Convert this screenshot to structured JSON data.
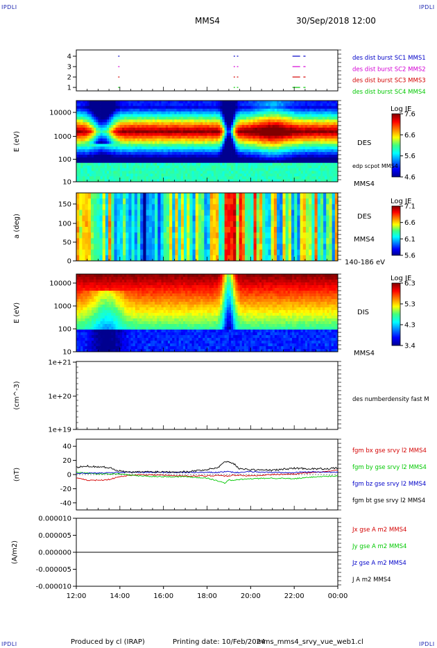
{
  "corners": {
    "tl": "IPDLI",
    "tr": "IPDLI",
    "bl": "IPDLI",
    "br": "IPDLI"
  },
  "header": {
    "spacecraft": "MMS4",
    "datetime": "30/Sep/2018 12:00"
  },
  "footer": {
    "produced": "Produced by cl (IRAP)",
    "printing": "Printing date: 10/Feb/2024",
    "file": "mms_mms4_srvy_vue_web1.cl"
  },
  "colors": {
    "sc1": "#0000c8",
    "sc2": "#d400d4",
    "sc3": "#d40000",
    "sc4": "#00c800",
    "bx": "#d40000",
    "by": "#00c800",
    "bz": "#0000c8",
    "bt": "#000000"
  },
  "chart_data": [
    {
      "type": "scatter",
      "panel": "availability",
      "yticks": [
        "1",
        "2",
        "3",
        "4"
      ],
      "series": [
        {
          "name": "des dist burst SC1 MMS1",
          "level": 4,
          "segments": [
            [
              13.92,
              13.94
            ],
            [
              19.22,
              19.27
            ],
            [
              19.37,
              19.42
            ],
            [
              21.92,
              22.27
            ],
            [
              22.42,
              22.52
            ]
          ]
        },
        {
          "name": "des dist burst SC2 MMS2",
          "level": 3,
          "segments": [
            [
              13.92,
              13.94
            ],
            [
              19.22,
              19.27
            ],
            [
              19.37,
              19.42
            ],
            [
              21.92,
              22.27
            ],
            [
              22.42,
              22.52
            ]
          ]
        },
        {
          "name": "des dist burst SC3 MMS3",
          "level": 2,
          "segments": [
            [
              13.92,
              13.94
            ],
            [
              19.22,
              19.27
            ],
            [
              19.37,
              19.42
            ],
            [
              21.92,
              22.27
            ],
            [
              22.42,
              22.52
            ]
          ]
        },
        {
          "name": "des dist burst SC4 MMS4",
          "level": 1,
          "segments": [
            [
              13.92,
              13.94
            ],
            [
              19.22,
              19.27
            ],
            [
              19.37,
              19.42
            ],
            [
              21.92,
              22.27
            ],
            [
              22.42,
              22.52
            ]
          ]
        }
      ],
      "xlim": [
        12,
        24
      ]
    },
    {
      "type": "heatmap",
      "panel": "des-energy",
      "ylabel": "E (eV)",
      "yticks": [
        "10",
        "100",
        "1000",
        "10000"
      ],
      "ylim": [
        10,
        30000
      ],
      "yscale": "log",
      "label": "DES",
      "sublabel": "MMS4",
      "overlay": "edp scpot MMS4",
      "colorbar": {
        "title": "Log JE",
        "ticks": [
          "4.6",
          "5.6",
          "6.6",
          "7.6"
        ],
        "range": [
          4.6,
          7.6
        ]
      }
    },
    {
      "type": "heatmap",
      "panel": "des-pitch",
      "ylabel": "a (deg)",
      "yticks": [
        "0",
        "50",
        "100",
        "150"
      ],
      "ylim": [
        0,
        180
      ],
      "label": "DES",
      "sublabel": "MMS4",
      "range_label": "140-186 eV",
      "colorbar": {
        "title": "Log JE",
        "ticks": [
          "5.6",
          "6.1",
          "6.6",
          "7.1"
        ],
        "range": [
          5.6,
          7.1
        ]
      }
    },
    {
      "type": "heatmap",
      "panel": "dis-energy",
      "ylabel": "E (eV)",
      "yticks": [
        "10",
        "100",
        "1000",
        "10000"
      ],
      "ylim": [
        10,
        30000
      ],
      "yscale": "log",
      "label": "DIS",
      "sublabel": "MMS4",
      "colorbar": {
        "title": "Log JE",
        "ticks": [
          "3.4",
          "4.3",
          "5.3",
          "6.3"
        ],
        "range": [
          3.4,
          6.3
        ]
      }
    },
    {
      "type": "line",
      "panel": "density",
      "ylabel": "(cm^-3)",
      "yticks": [
        "1e+19",
        "1e+20",
        "1e+21"
      ],
      "yscale": "log",
      "series": [
        {
          "name": "des numberdensity fast M",
          "values": []
        }
      ]
    },
    {
      "type": "line",
      "panel": "fgm",
      "ylabel": "(nT)",
      "yticks": [
        "-40",
        "-20",
        "0",
        "20",
        "40"
      ],
      "ylim": [
        -50,
        50
      ],
      "series": [
        {
          "name": "fgm bx gse srvy l2 MMS4",
          "x": [
            12,
            12.5,
            13,
            13.5,
            14,
            14.5,
            15,
            16,
            17,
            18,
            18.5,
            18.8,
            19,
            19.2,
            19.5,
            20,
            21,
            22,
            23,
            24
          ],
          "values": [
            -5,
            -8,
            -8,
            -7,
            -3,
            -1,
            0,
            -1,
            -2,
            -2,
            -1,
            -2,
            -2,
            -1,
            -1,
            -2,
            0,
            1,
            3,
            6
          ]
        },
        {
          "name": "fgm by gse srvy l2 MMS4",
          "x": [
            12,
            12.5,
            13,
            13.5,
            14,
            14.5,
            15,
            16,
            17,
            18,
            18.5,
            18.8,
            19,
            19.2,
            19.5,
            20,
            21,
            22,
            23,
            24
          ],
          "values": [
            3,
            2,
            1,
            1,
            1,
            -1,
            -2,
            -3,
            -3,
            -5,
            -9,
            -12,
            -8,
            -8,
            -7,
            -6,
            -5,
            -6,
            -3,
            -2
          ]
        },
        {
          "name": "fgm bz gse srvy l2 MMS4",
          "x": [
            12,
            12.5,
            13,
            13.5,
            14,
            14.5,
            15,
            16,
            17,
            18,
            18.5,
            18.8,
            19,
            19.2,
            19.5,
            20,
            21,
            22,
            23,
            24
          ],
          "values": [
            2,
            2,
            2,
            3,
            3,
            3,
            3,
            3,
            3,
            3,
            3,
            4,
            4,
            3,
            3,
            4,
            3,
            3,
            4,
            3
          ]
        },
        {
          "name": "fgm bt gse srvy l2 MMS4",
          "x": [
            12,
            12.5,
            13,
            13.5,
            14,
            14.5,
            15,
            16,
            17,
            18,
            18.5,
            18.8,
            19,
            19.2,
            19.5,
            20,
            21,
            22,
            23,
            24
          ],
          "values": [
            10,
            12,
            11,
            10,
            5,
            3,
            4,
            4,
            4,
            7,
            10,
            18,
            18,
            16,
            8,
            7,
            6,
            9,
            8,
            9
          ]
        }
      ]
    },
    {
      "type": "line",
      "panel": "current",
      "ylabel": "(A/m2)",
      "yticks": [
        "-0.000010",
        "-0.000005",
        "0.000000",
        "0.000005",
        "0.000010"
      ],
      "ylim": [
        -1e-05,
        1e-05
      ],
      "xticks": [
        "12:00",
        "14:00",
        "16:00",
        "18:00",
        "20:00",
        "22:00",
        "00:00"
      ],
      "series": [
        {
          "name": "Jx gse A m2 MMS4",
          "values": [
            0,
            0,
            0,
            0,
            0,
            0,
            0
          ]
        },
        {
          "name": "Jy gse A m2 MMS4",
          "values": [
            0,
            0,
            0,
            0,
            0,
            0,
            0
          ]
        },
        {
          "name": "Jz gse A m2 MMS4",
          "values": [
            0,
            0,
            0,
            0,
            0,
            0,
            0
          ]
        },
        {
          "name": "J A m2 MMS4",
          "values": [
            0,
            0,
            0,
            0,
            0,
            0,
            0
          ]
        }
      ]
    }
  ]
}
